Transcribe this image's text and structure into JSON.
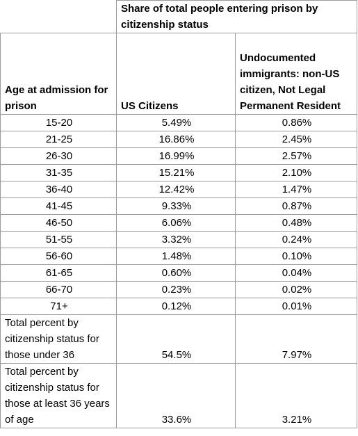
{
  "table": {
    "group_header": "Share of total people entering prison by citizenship status",
    "columns": [
      "Age at admission for prison",
      "US Citizens",
      "Undocumented immigrants: non-US citizen, Not Legal Permanent Resident"
    ],
    "rows": [
      {
        "age": "15-20",
        "us": "5.49%",
        "undoc": "0.86%"
      },
      {
        "age": "21-25",
        "us": "16.86%",
        "undoc": "2.45%"
      },
      {
        "age": "26-30",
        "us": "16.99%",
        "undoc": "2.57%"
      },
      {
        "age": "31-35",
        "us": "15.21%",
        "undoc": "2.10%"
      },
      {
        "age": "36-40",
        "us": "12.42%",
        "undoc": "1.47%"
      },
      {
        "age": "41-45",
        "us": "9.33%",
        "undoc": "0.87%"
      },
      {
        "age": "46-50",
        "us": "6.06%",
        "undoc": "0.48%"
      },
      {
        "age": "51-55",
        "us": "3.32%",
        "undoc": "0.24%"
      },
      {
        "age": "56-60",
        "us": "1.48%",
        "undoc": "0.10%"
      },
      {
        "age": "61-65",
        "us": "0.60%",
        "undoc": "0.04%"
      },
      {
        "age": "66-70",
        "us": "0.23%",
        "undoc": "0.02%"
      },
      {
        "age": "71+",
        "us": "0.12%",
        "undoc": "0.01%"
      }
    ],
    "totals": [
      {
        "label": "Total percent by citizenship status for those under 36",
        "us": "54.5%",
        "undoc": "7.97%"
      },
      {
        "label": "Total percent by citizenship status for those at least 36 years of age",
        "us": "33.6%",
        "undoc": "3.21%"
      }
    ]
  }
}
